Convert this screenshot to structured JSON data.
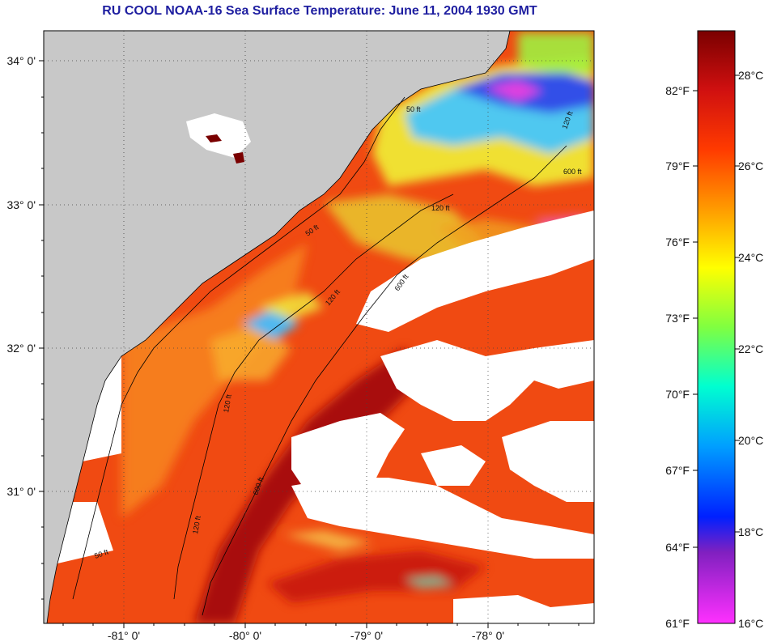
{
  "title": "RU COOL  NOAA-16  Sea Surface Temperature:  June 11, 2004 1930 GMT",
  "map": {
    "lat_labels": [
      "34° 0'",
      "33° 0'",
      "32° 0'",
      "31° 0'"
    ],
    "lon_labels": [
      "-81° 0'",
      "-80° 0'",
      "-79° 0'",
      "-78° 0'"
    ],
    "contour_labels": [
      "50 ft",
      "50 ft",
      "50 ft",
      "120 ft",
      "120 ft",
      "120 ft",
      "120 ft",
      "120 ft",
      "600 ft",
      "600 ft",
      "600 ft"
    ],
    "colors": {
      "land": "#c8c8c8",
      "cloud": "#ffffff",
      "warm_water": "#f04010",
      "gulf_stream": "#a01010",
      "cool_water": "#40c8f0",
      "contour": "#000000"
    }
  },
  "colorbar": {
    "fahrenheit_labels": [
      "82°F",
      "79°F",
      "76°F",
      "73°F",
      "70°F",
      "67°F",
      "64°F",
      "61°F"
    ],
    "celsius_labels": [
      "28°C",
      "26°C",
      "24°C",
      "22°C",
      "20°C",
      "18°C",
      "16°C"
    ],
    "range_c": [
      16,
      29
    ],
    "gradient_stops": [
      {
        "offset": 0.0,
        "color": "#7a0000"
      },
      {
        "offset": 0.1,
        "color": "#d01010"
      },
      {
        "offset": 0.2,
        "color": "#ff3a00"
      },
      {
        "offset": 0.3,
        "color": "#ff9a00"
      },
      {
        "offset": 0.4,
        "color": "#ffff00"
      },
      {
        "offset": 0.5,
        "color": "#80ff40"
      },
      {
        "offset": 0.6,
        "color": "#00ffd0"
      },
      {
        "offset": 0.7,
        "color": "#00a0ff"
      },
      {
        "offset": 0.82,
        "color": "#0020ff"
      },
      {
        "offset": 0.88,
        "color": "#8020c0"
      },
      {
        "offset": 1.0,
        "color": "#ff30ff"
      }
    ]
  }
}
